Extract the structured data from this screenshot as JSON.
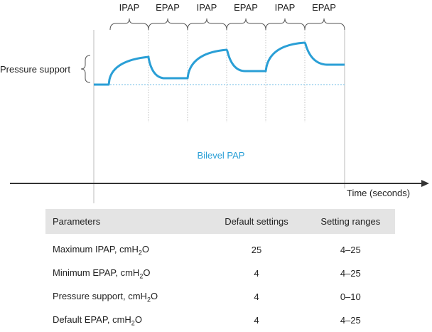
{
  "diagram": {
    "phases": [
      "IPAP",
      "EPAP",
      "IPAP",
      "EPAP",
      "IPAP",
      "EPAP"
    ],
    "pressure_support_label": "Pressure support",
    "mode_label": "Bilevel PAP",
    "x_axis_label": "Time (seconds)",
    "colors": {
      "waveform": "#2a9fd6",
      "baseline": "#9fd3ee",
      "axis": "#333333",
      "guides": "#bbbbbb"
    }
  },
  "table": {
    "headers": [
      "Parameters",
      "Default settings",
      "Setting ranges"
    ],
    "rows": [
      {
        "param_pre": "Maximum IPAP, cmH",
        "param_sub": "2",
        "param_post": "O",
        "default": "25",
        "range": "4–25"
      },
      {
        "param_pre": "Minimum EPAP, cmH",
        "param_sub": "2",
        "param_post": "O",
        "default": "4",
        "range": "4–25"
      },
      {
        "param_pre": "Pressure support, cmH",
        "param_sub": "2",
        "param_post": "O",
        "default": "4",
        "range": "0–10"
      },
      {
        "param_pre": "Default EPAP, cmH",
        "param_sub": "2",
        "param_post": "O",
        "default": "4",
        "range": "4–25"
      }
    ]
  }
}
